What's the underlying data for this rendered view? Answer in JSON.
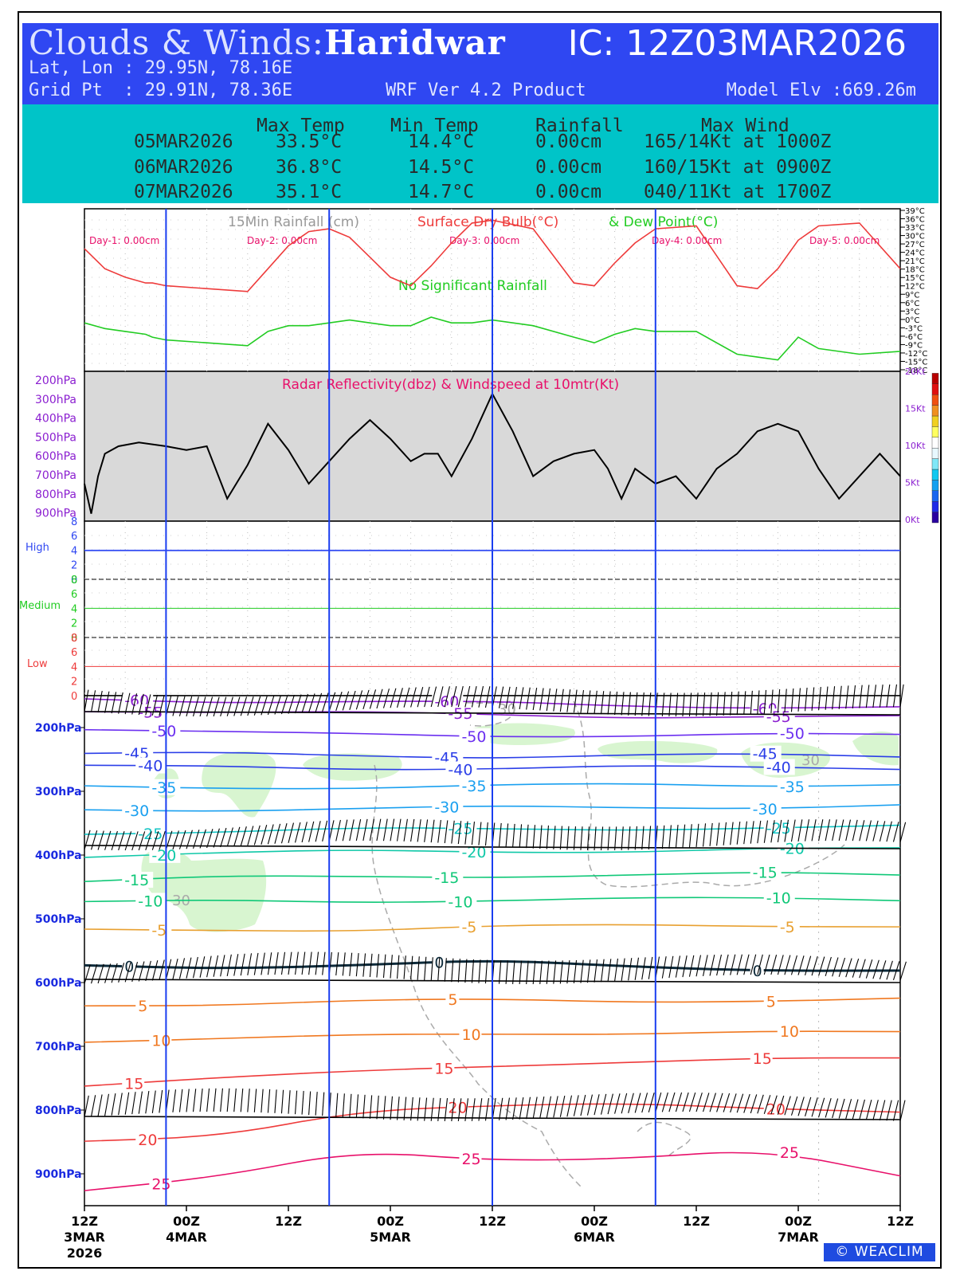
{
  "header": {
    "title_prefix": "Clouds & Winds:",
    "station": "Haridwar",
    "ic": "IC: 12Z03MAR2026",
    "latlon": "Lat, Lon : 29.95N, 78.16E",
    "gridpt": "Grid Pt  : 29.91N, 78.36E",
    "product": "WRF Ver 4.2 Product",
    "elevation": "Model Elv :669.26m"
  },
  "summary": {
    "headers": [
      "Max Temp",
      "Min Temp",
      "Rainfall",
      "Max Wind"
    ],
    "rows": [
      {
        "date": "05MAR2026",
        "max": "33.5°C",
        "min": "14.4°C",
        "rain": "0.00cm",
        "wind": "165/14Kt at 1000Z"
      },
      {
        "date": "06MAR2026",
        "max": "36.8°C",
        "min": "14.5°C",
        "rain": "0.00cm",
        "wind": "160/15Kt at 0900Z"
      },
      {
        "date": "07MAR2026",
        "max": "35.1°C",
        "min": "14.7°C",
        "rain": "0.00cm",
        "wind": "040/11Kt at 1700Z"
      }
    ]
  },
  "chart_data": [
    {
      "type": "line",
      "title_parts": [
        "15Min Rainfall (cm)",
        "Surface Dry Bulb(°C)",
        "& Dew Point(°C)"
      ],
      "note": "No Significant Rainfall",
      "day_labels": [
        "Day-1: 0.00cm",
        "Day-2: 0.00cm",
        "Day-3: 0.00cm",
        "Day-4: 0.00cm",
        "Day-5: 0.00cm"
      ],
      "x": [
        0,
        3,
        6,
        9,
        10,
        12,
        18,
        24,
        27,
        30,
        33,
        36,
        39,
        42,
        45,
        48,
        51,
        54,
        57,
        60,
        66,
        72,
        75,
        78,
        81,
        84,
        90,
        96,
        99,
        102,
        105,
        108,
        114,
        120
      ],
      "series": [
        {
          "name": "Surface Dry Bulb(°C)",
          "color": "#ee3b3b",
          "values": [
            25,
            18,
            15,
            13,
            13,
            12,
            11,
            10,
            18,
            26,
            31,
            32,
            29,
            22,
            15,
            12,
            19,
            27,
            34,
            35,
            32,
            13,
            12,
            20,
            27,
            32,
            33,
            12,
            11,
            18,
            28,
            33,
            34,
            18
          ]
        },
        {
          "name": "Dew Point(°C)",
          "color": "#22cc22",
          "values": [
            -1,
            -3,
            -4,
            -5,
            -6,
            -7,
            -8,
            -9,
            -4,
            -2,
            -2,
            -1,
            0,
            -1,
            -2,
            -2,
            1,
            -1,
            -1,
            0,
            -2,
            -6,
            -8,
            -5,
            -3,
            -4,
            -4,
            -12,
            -13,
            -14,
            -6,
            -10,
            -12,
            -11
          ]
        }
      ],
      "y_ticks": [
        "39°C",
        "36°C",
        "33°C",
        "30°C",
        "27°C",
        "24°C",
        "21°C",
        "18°C",
        "15°C",
        "12°C",
        "9°C",
        "6°C",
        "3°C",
        "0°C",
        "-3°C",
        "-6°C",
        "-9°C",
        "-12°C",
        "-15°C",
        "-18°C"
      ],
      "ylim": [
        -18,
        39
      ]
    },
    {
      "type": "line",
      "title": "Radar Reflectivity(dbz) & Windspeed at 10mtr(Kt)",
      "left_ticks": [
        "200hPa",
        "300hPa",
        "400hPa",
        "500hPa",
        "600hPa",
        "700hPa",
        "800hPa",
        "900hPa"
      ],
      "right_ticks": [
        "20Kt",
        "15Kt",
        "10Kt",
        "5Kt",
        "0Kt"
      ],
      "ylim": [
        0,
        20
      ],
      "series": [
        {
          "name": "Windspeed at 10mtr(Kt)",
          "color": "#000000",
          "x": [
            0,
            1,
            2,
            3,
            5,
            8,
            12,
            15,
            18,
            21,
            24,
            27,
            30,
            33,
            36,
            39,
            42,
            45,
            48,
            50,
            52,
            54,
            57,
            60,
            63,
            66,
            69,
            72,
            75,
            77,
            79,
            81,
            84,
            87,
            90,
            93,
            96,
            99,
            102,
            105,
            108,
            111,
            114,
            117,
            120
          ],
          "values": [
            5,
            1,
            6,
            9,
            10,
            10.5,
            10,
            9.5,
            10,
            3,
            7.5,
            13,
            9.5,
            5,
            8,
            11,
            13.5,
            11,
            8,
            9,
            9,
            6,
            11,
            17,
            12,
            6,
            8,
            9,
            9.5,
            7,
            3,
            7,
            5,
            6,
            3,
            7,
            9,
            12,
            13,
            12,
            7,
            3,
            6,
            9,
            6
          ]
        }
      ]
    },
    {
      "type": "area",
      "title": "Cloud layers",
      "layers": [
        {
          "label": "High",
          "ticks": [
            "8",
            "6",
            "4",
            "2",
            "0"
          ],
          "color": "#2f47f2"
        },
        {
          "label": "Medium",
          "ticks": [
            "8",
            "6",
            "4",
            "2",
            "0"
          ],
          "color": "#22cc22"
        },
        {
          "label": "Low",
          "ticks": [
            "8",
            "6",
            "4",
            "2",
            "0"
          ],
          "color": "#ee3b3b"
        }
      ],
      "cloud_cover": {
        "High": 0,
        "Medium": 0,
        "Low": 0
      }
    },
    {
      "type": "line",
      "title": "Temperature (°C) contours with wind barbs",
      "y_ticks": [
        "200hPa",
        "300hPa",
        "400hPa",
        "500hPa",
        "600hPa",
        "700hPa",
        "800hPa",
        "900hPa"
      ],
      "ylim": [
        950,
        150
      ],
      "isotherms": [
        {
          "value": -60,
          "label": "-60",
          "color": "#8b1fd0",
          "levels": [
            155,
            158,
            160,
            162,
            165,
            167,
            170
          ]
        },
        {
          "value": -55,
          "label": "-55",
          "color": "#8b1fd0",
          "levels": [
            172,
            175,
            178,
            180,
            182,
            183,
            185
          ]
        },
        {
          "value": -50,
          "label": "-50",
          "color": "#6b2ff0",
          "levels": [
            200,
            208,
            212,
            212,
            212,
            212,
            212
          ]
        },
        {
          "value": -45,
          "label": "-45",
          "color": "#2b3ee8",
          "levels": [
            240,
            242,
            244,
            245,
            244,
            244,
            244
          ]
        },
        {
          "value": -40,
          "label": "-40",
          "color": "#2b3ee8",
          "levels": [
            262,
            262,
            263,
            264,
            263,
            262,
            262
          ]
        },
        {
          "value": -35,
          "label": "-35",
          "color": "#1aa0f0",
          "levels": [
            295,
            294,
            293,
            292,
            290,
            290,
            288
          ]
        },
        {
          "value": -30,
          "label": "-30",
          "color": "#1aa0f0",
          "levels": [
            330,
            328,
            327,
            326,
            325,
            324,
            323
          ]
        },
        {
          "value": -25,
          "label": "-25",
          "color": "#13c4c4",
          "levels": [
            365,
            362,
            360,
            360,
            358,
            357,
            357
          ]
        },
        {
          "value": -20,
          "label": "-20",
          "color": "#10c8a8",
          "levels": [
            400,
            397,
            395,
            394,
            393,
            392,
            391
          ]
        },
        {
          "value": -15,
          "label": "-15",
          "color": "#10c878",
          "levels": [
            440,
            436,
            434,
            432,
            432,
            430,
            430
          ]
        },
        {
          "value": -10,
          "label": "-10",
          "color": "#10c878",
          "levels": [
            475,
            473,
            472,
            470,
            470,
            468,
            468
          ]
        },
        {
          "value": -5,
          "label": "-5",
          "color": "#e8a030",
          "levels": [
            520,
            518,
            516,
            512,
            512,
            510,
            510
          ]
        },
        {
          "value": 0,
          "label": "0",
          "color": "#0d2a3a",
          "levels": [
            575,
            575,
            572,
            568,
            575,
            578,
            582
          ]
        },
        {
          "value": 5,
          "label": "5",
          "color": "#f07820",
          "levels": [
            635,
            633,
            630,
            628,
            628,
            628,
            628
          ]
        },
        {
          "value": 10,
          "label": "10",
          "color": "#f07820",
          "levels": [
            690,
            688,
            685,
            680,
            678,
            678,
            680
          ]
        },
        {
          "value": 15,
          "label": "15",
          "color": "#ee3b3b",
          "levels": [
            760,
            752,
            740,
            728,
            725,
            722,
            718
          ]
        },
        {
          "value": 20,
          "label": "20",
          "color": "#ee3b3b",
          "levels": [
            850,
            845,
            800,
            790,
            792,
            800,
            800
          ]
        },
        {
          "value": 25,
          "label": "25",
          "color": "#e8106a",
          "levels": [
            930,
            905,
            860,
            880,
            880,
            860,
            900
          ]
        }
      ],
      "contour_labels_30": [
        "30",
        "30",
        "30"
      ],
      "barb_levels": [
        165,
        375,
        585,
        800
      ]
    }
  ],
  "x_axis": {
    "ticks": [
      "12Z",
      "00Z",
      "12Z",
      "00Z",
      "12Z",
      "00Z",
      "12Z",
      "00Z",
      "12Z"
    ],
    "dates": [
      "3MAR\n2026",
      "4MAR",
      "",
      "5MAR",
      "",
      "6MAR",
      "",
      "7MAR",
      ""
    ]
  },
  "footer": {
    "brand": "© WEACLIM"
  }
}
